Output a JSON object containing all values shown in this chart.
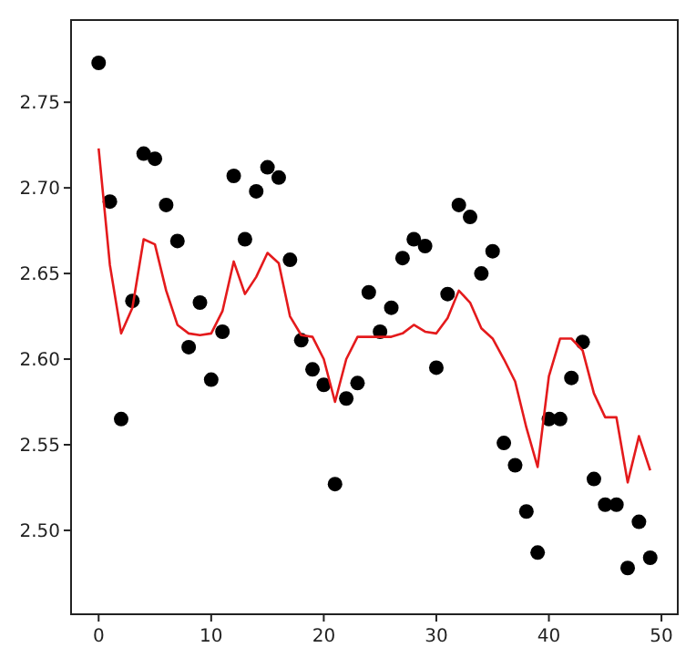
{
  "chart_data": {
    "type": "scatter",
    "x": [
      0,
      1,
      2,
      3,
      4,
      5,
      6,
      7,
      8,
      9,
      10,
      11,
      12,
      13,
      14,
      15,
      16,
      17,
      18,
      19,
      20,
      21,
      22,
      23,
      24,
      25,
      26,
      27,
      28,
      29,
      30,
      31,
      32,
      33,
      34,
      35,
      36,
      37,
      38,
      39,
      40,
      41,
      42,
      43,
      44,
      45,
      46,
      47,
      48,
      49
    ],
    "series": [
      {
        "color": "#000000",
        "marker": "circle",
        "values": [
          2.773,
          2.692,
          2.565,
          2.634,
          2.72,
          2.717,
          2.69,
          2.669,
          2.607,
          2.633,
          2.588,
          2.616,
          2.707,
          2.67,
          2.698,
          2.712,
          2.706,
          2.658,
          2.611,
          2.594,
          2.585,
          2.527,
          2.577,
          2.586,
          2.639,
          2.616,
          2.63,
          2.659,
          2.67,
          2.666,
          2.595,
          2.638,
          2.69,
          2.683,
          2.65,
          2.663,
          2.551,
          2.538,
          2.511,
          2.487,
          2.565,
          2.565,
          2.589,
          2.61,
          2.53,
          2.515,
          2.515,
          2.478,
          2.505,
          2.484
        ]
      },
      {
        "type": "line",
        "color": "#e41a1c",
        "marker": "none",
        "values": [
          2.723,
          2.655,
          2.615,
          2.63,
          2.67,
          2.667,
          2.64,
          2.62,
          2.615,
          2.614,
          2.615,
          2.628,
          2.657,
          2.638,
          2.648,
          2.662,
          2.656,
          2.625,
          2.614,
          2.613,
          2.6,
          2.575,
          2.6,
          2.613,
          2.613,
          2.613,
          2.613,
          2.615,
          2.62,
          2.616,
          2.615,
          2.624,
          2.64,
          2.633,
          2.618,
          2.612,
          2.6,
          2.587,
          2.56,
          2.537,
          2.59,
          2.612,
          2.612,
          2.605,
          2.58,
          2.566,
          2.566,
          2.528,
          2.555,
          2.535
        ]
      }
    ],
    "xlim": [
      -2.45,
      51.45
    ],
    "xticks": [
      0,
      10,
      20,
      30,
      40,
      50
    ],
    "ylim": [
      2.451,
      2.798
    ],
    "yticks": [
      {
        "value": 2.5,
        "label": "2.50"
      },
      {
        "value": 2.55,
        "label": "2.55"
      },
      {
        "value": 2.6,
        "label": "2.60"
      },
      {
        "value": 2.65,
        "label": "2.65"
      },
      {
        "value": 2.7,
        "label": "2.70"
      },
      {
        "value": 2.75,
        "label": "2.75"
      }
    ],
    "grid": false
  }
}
